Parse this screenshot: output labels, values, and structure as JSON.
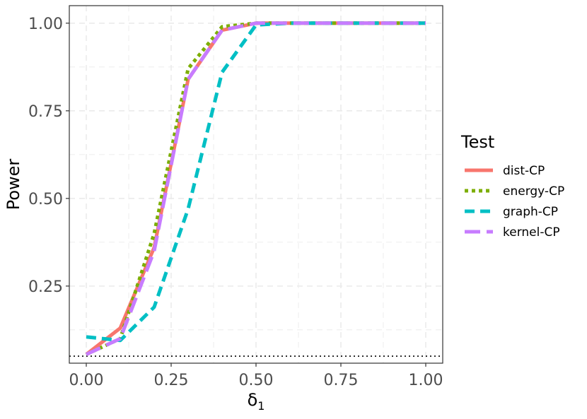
{
  "chart_data": {
    "type": "line",
    "xlabel": "δ",
    "xlabel_subscript": "1",
    "ylabel": "Power",
    "xlim": [
      -0.05,
      1.05
    ],
    "ylim": [
      0.03,
      1.05
    ],
    "x_ticks": [
      0.0,
      0.25,
      0.5,
      0.75,
      1.0
    ],
    "x_tick_labels": [
      "0.00",
      "0.25",
      "0.50",
      "0.75",
      "1.00"
    ],
    "y_ticks": [
      0.25,
      0.5,
      0.75,
      1.0
    ],
    "y_tick_labels": [
      "0.25",
      "0.50",
      "0.75",
      "1.00"
    ],
    "grid": true,
    "reference_line": {
      "y": 0.05,
      "style": "dotted",
      "color": "#000000"
    },
    "legend": {
      "title": "Test",
      "position": "right"
    },
    "x": [
      0.0,
      0.1,
      0.2,
      0.3,
      0.4,
      0.5,
      0.6,
      0.7,
      0.8,
      0.9,
      1.0
    ],
    "series": [
      {
        "name": "dist-CP",
        "color": "#F8766D",
        "dash": "solid",
        "values": [
          0.055,
          0.13,
          0.36,
          0.84,
          0.98,
          1.0,
          1.0,
          1.0,
          1.0,
          1.0,
          1.0
        ]
      },
      {
        "name": "energy-CP",
        "color": "#7CAE00",
        "dash": "dotted",
        "values": [
          0.055,
          0.1,
          0.4,
          0.87,
          0.99,
          1.0,
          1.0,
          1.0,
          1.0,
          1.0,
          1.0
        ]
      },
      {
        "name": "graph-CP",
        "color": "#00BFC4",
        "dash": "dashed",
        "values": [
          0.105,
          0.095,
          0.19,
          0.47,
          0.86,
          0.995,
          1.0,
          1.0,
          1.0,
          1.0,
          1.0
        ]
      },
      {
        "name": "kernel-CP",
        "color": "#C77CFF",
        "dash": "longdash",
        "values": [
          0.055,
          0.1,
          0.35,
          0.84,
          0.98,
          1.0,
          1.0,
          1.0,
          1.0,
          1.0,
          1.0
        ]
      }
    ]
  }
}
